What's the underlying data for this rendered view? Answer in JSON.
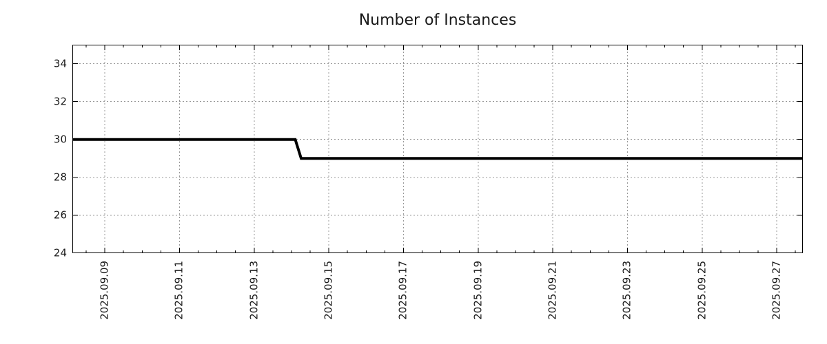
{
  "colors": {
    "background": "#ffffff",
    "axis_border": "#000000",
    "grid": "#999999",
    "tick": "#000000",
    "text": "#1a1a1a",
    "line": "#000000"
  },
  "chart_data": {
    "type": "line",
    "title": "Number of Instances",
    "xlabel": "",
    "ylabel": "",
    "legend": false,
    "grid": true,
    "grid_style": "dotted",
    "x_axis": {
      "unit": "date (September 2025, day-of-month as number)",
      "start_day": 8.13,
      "end_day": 27.7,
      "major_tick_days": [
        9,
        11,
        13,
        15,
        17,
        19,
        21,
        23,
        25,
        27
      ],
      "major_tick_labels": [
        "2025.09.09",
        "2025.09.11",
        "2025.09.13",
        "2025.09.15",
        "2025.09.17",
        "2025.09.19",
        "2025.09.21",
        "2025.09.23",
        "2025.09.25",
        "2025.09.27"
      ],
      "minor_tick_step_days": 0.5,
      "label_rotation_deg": -90
    },
    "y_axis": {
      "min": 24,
      "max": 35,
      "major_ticks": [
        24,
        26,
        28,
        30,
        32,
        34
      ],
      "gridline_values": [
        26,
        28,
        30,
        32,
        34
      ]
    },
    "series": [
      {
        "name": "instances",
        "color": "#000000",
        "stroke_width": 4,
        "points": [
          [
            8.13,
            30
          ],
          [
            14.1,
            30
          ],
          [
            14.26,
            29
          ],
          [
            27.7,
            29
          ]
        ]
      }
    ],
    "annotation": "Step line: value 30 from left edge until ~2025.09.14, then drops to 29 through right edge"
  }
}
